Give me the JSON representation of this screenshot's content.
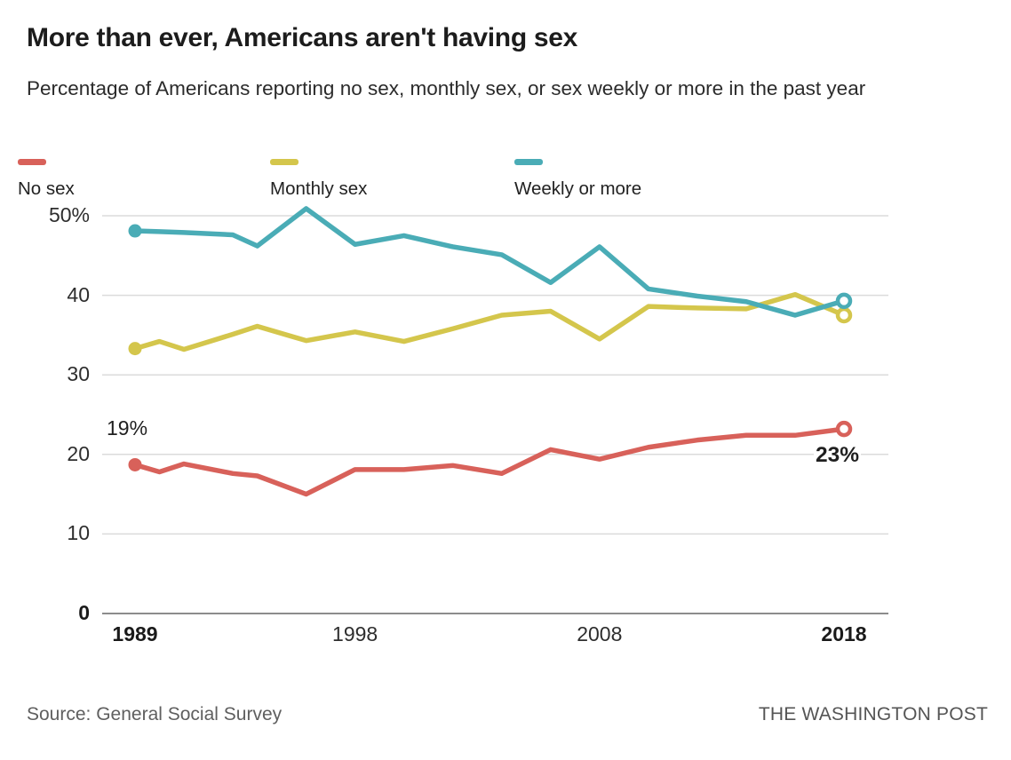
{
  "header": {
    "title": "More than ever, Americans aren't having sex",
    "subtitle": "Percentage of Americans reporting no sex, monthly sex, or sex weekly or more in the past year"
  },
  "legend": {
    "items": [
      {
        "label": "No sex",
        "color": "#d8615a"
      },
      {
        "label": "Monthly sex",
        "color": "#d4c64c"
      },
      {
        "label": "Weekly or more",
        "color": "#4aacb6"
      }
    ]
  },
  "chart_data": {
    "type": "line",
    "title": "More than ever, Americans aren't having sex",
    "xlabel": "",
    "ylabel": "Percent",
    "xlim": [
      1989,
      2018
    ],
    "ylim": [
      0,
      52
    ],
    "grid": true,
    "legend_position": "top",
    "x": [
      1989,
      1990,
      1991,
      1993,
      1994,
      1996,
      1998,
      2000,
      2002,
      2004,
      2006,
      2008,
      2010,
      2012,
      2014,
      2016,
      2018
    ],
    "series": [
      {
        "name": "No sex",
        "color": "#d8615a",
        "values": [
          18.7,
          17.8,
          18.8,
          17.6,
          17.3,
          15.0,
          18.1,
          18.1,
          18.6,
          17.6,
          20.6,
          19.4,
          20.9,
          21.8,
          22.4,
          22.4,
          23.2
        ]
      },
      {
        "name": "Monthly sex",
        "color": "#d4c64c",
        "values": [
          33.3,
          34.2,
          33.2,
          35.1,
          36.1,
          34.3,
          35.4,
          34.2,
          35.8,
          37.5,
          38.0,
          34.5,
          38.6,
          38.4,
          38.3,
          40.1,
          37.5
        ]
      },
      {
        "name": "Weekly or more",
        "color": "#4aacb6",
        "values": [
          48.1,
          48.0,
          47.9,
          47.6,
          46.2,
          50.9,
          46.4,
          47.5,
          46.1,
          45.1,
          41.6,
          46.1,
          40.8,
          39.9,
          39.2,
          37.5,
          39.3
        ]
      }
    ],
    "yticks": [
      {
        "value": 50,
        "label": "50%",
        "bold": false
      },
      {
        "value": 40,
        "label": "40",
        "bold": false
      },
      {
        "value": 30,
        "label": "30",
        "bold": false
      },
      {
        "value": 20,
        "label": "20",
        "bold": false
      },
      {
        "value": 10,
        "label": "10",
        "bold": false
      },
      {
        "value": 0,
        "label": "0",
        "bold": true
      }
    ],
    "xticks": [
      {
        "value": 1989,
        "label": "1989",
        "bold": true
      },
      {
        "value": 1998,
        "label": "1998",
        "bold": false
      },
      {
        "value": 2008,
        "label": "2008",
        "bold": false
      },
      {
        "value": 2018,
        "label": "2018",
        "bold": true
      }
    ],
    "annotations": [
      {
        "text": "19%",
        "series": "No sex",
        "x": 1989,
        "y": 19
      },
      {
        "text": "23%",
        "series": "No sex",
        "x": 2018,
        "y": 23
      }
    ]
  },
  "footer": {
    "source": "Source: General Social Survey",
    "credit": "THE WASHINGTON POST"
  }
}
